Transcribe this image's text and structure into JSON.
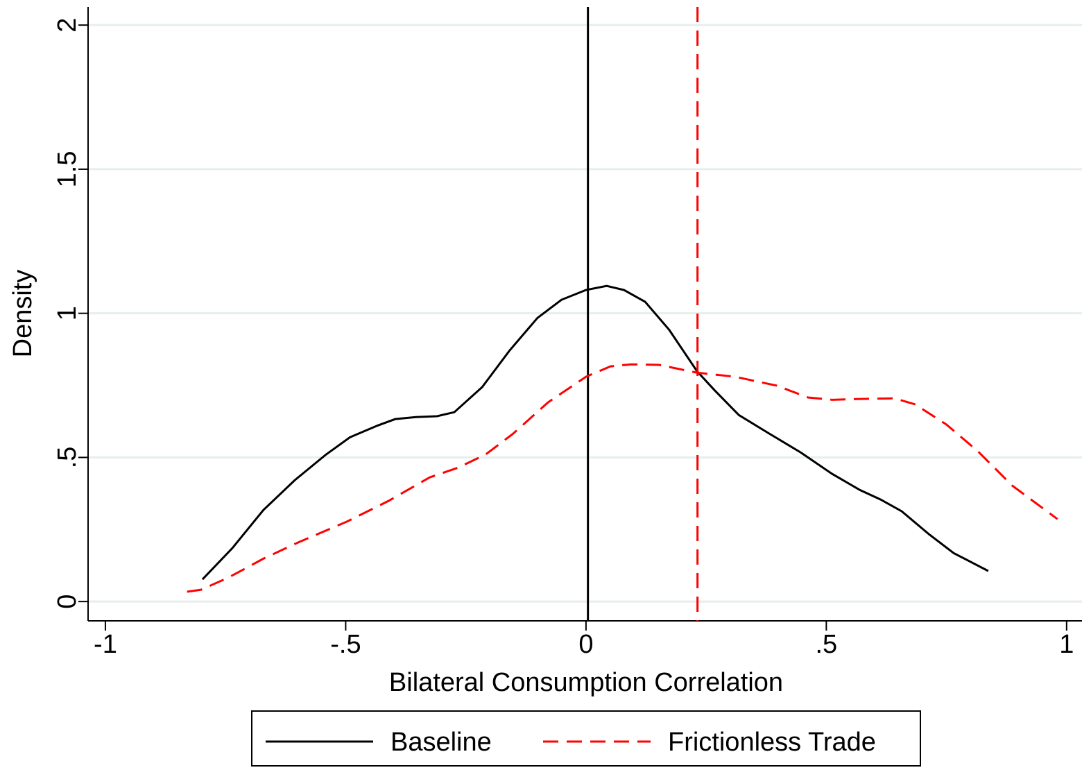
{
  "chart_data": {
    "type": "line",
    "xlabel": "Bilateral Consumption Correlation",
    "ylabel": "Density",
    "xlim": [
      -1.036,
      1.032
    ],
    "ylim": [
      -0.067,
      2.063
    ],
    "xticks": [
      -1,
      {
        "value": -0.5,
        "label": "-.5"
      },
      0,
      {
        "value": 0.5,
        "label": ".5"
      },
      1
    ],
    "yticks": [
      0,
      {
        "value": 0.5,
        "label": ".5"
      },
      1,
      1.5,
      2
    ],
    "grid": true,
    "legend": "bottom",
    "series": [
      {
        "name": "Baseline",
        "color": "#000000",
        "dash": false,
        "mean_line": 0.004,
        "x": [
          -0.798,
          -0.736,
          -0.671,
          -0.606,
          -0.541,
          -0.491,
          -0.433,
          -0.397,
          -0.354,
          -0.31,
          -0.274,
          -0.216,
          -0.159,
          -0.101,
          -0.051,
          0,
          0.043,
          0.079,
          0.123,
          0.173,
          0.231,
          0.267,
          0.318,
          0.382,
          0.447,
          0.512,
          0.57,
          0.613,
          0.657,
          0.714,
          0.765,
          0.837
        ],
        "values": [
          0.077,
          0.185,
          0.318,
          0.421,
          0.51,
          0.57,
          0.611,
          0.633,
          0.64,
          0.643,
          0.657,
          0.744,
          0.871,
          0.984,
          1.047,
          1.081,
          1.095,
          1.081,
          1.04,
          0.943,
          0.799,
          0.734,
          0.647,
          0.582,
          0.517,
          0.443,
          0.387,
          0.354,
          0.313,
          0.233,
          0.168,
          0.106
        ]
      },
      {
        "name": "Frictionless Trade",
        "color": "#ff0000",
        "dash": true,
        "mean_line": 0.232,
        "x": [
          -0.83,
          -0.801,
          -0.743,
          -0.671,
          -0.599,
          -0.498,
          -0.411,
          -0.325,
          -0.267,
          -0.209,
          -0.152,
          -0.079,
          0,
          0.051,
          0.094,
          0.152,
          0.231,
          0.31,
          0.397,
          0.462,
          0.512,
          0.57,
          0.642,
          0.685,
          0.75,
          0.815,
          0.887,
          0.981
        ],
        "values": [
          0.034,
          0.041,
          0.084,
          0.149,
          0.205,
          0.277,
          0.349,
          0.431,
          0.464,
          0.51,
          0.582,
          0.691,
          0.78,
          0.816,
          0.823,
          0.821,
          0.794,
          0.78,
          0.749,
          0.708,
          0.7,
          0.703,
          0.705,
          0.684,
          0.614,
          0.522,
          0.402,
          0.286
        ]
      }
    ]
  }
}
